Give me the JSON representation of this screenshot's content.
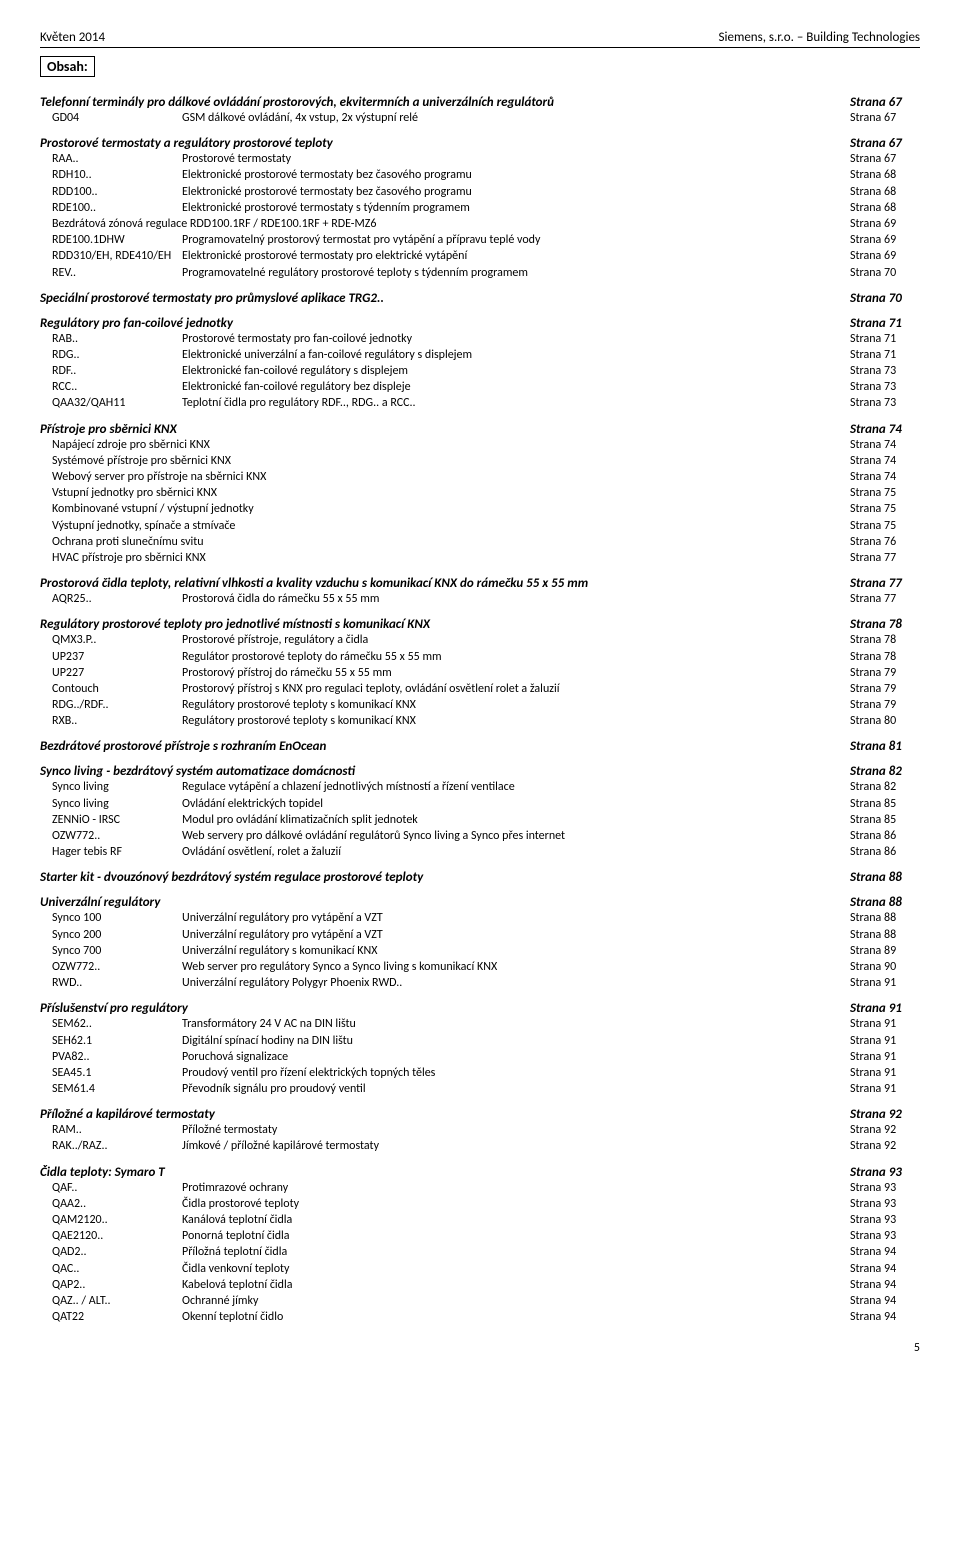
{
  "header_left": "Květen 2014",
  "header_right": "Siemens, s.r.o. – Building Technologies",
  "obsah_label": "Obsah:",
  "sections": [
    {
      "title": "Telefonní terminály pro dálkové ovládání prostorových, ekvitermních a univerzálních regulátorů",
      "page": "Strana 67",
      "rows": [
        {
          "code": "GD04",
          "desc": "GSM dálkové ovládání, 4x vstup, 2x výstupní relé",
          "page": "Strana 67"
        }
      ]
    },
    {
      "title": "Prostorové termostaty a regulátory prostorové teploty",
      "page": "Strana 67",
      "rows": [
        {
          "code": "RAA..",
          "desc": "Prostorové termostaty",
          "page": "Strana 67"
        },
        {
          "code": "RDH10..",
          "desc": "Elektronické prostorové termostaty bez časového programu",
          "page": "Strana 68"
        },
        {
          "code": "RDD100..",
          "desc": "Elektronické prostorové termostaty bez časového programu",
          "page": "Strana 68"
        },
        {
          "code": "RDE100..",
          "desc": "Elektronické prostorové termostaty s týdenním programem",
          "page": "Strana 68"
        },
        {
          "code": "",
          "desc": "Bezdrátová zónová regulace RDD100.1RF / RDE100.1RF + RDE-MZ6",
          "page": "Strana 69",
          "nowrap": true
        },
        {
          "code": "RDE100.1DHW",
          "desc": "Programovatelný prostorový termostat pro vytápění a přípravu teplé vody",
          "page": "Strana 69"
        },
        {
          "code": "RDD310/EH, RDE410/EH",
          "desc": "Elektronické prostorové termostaty pro elektrické vytápění",
          "page": "Strana 69"
        },
        {
          "code": "REV..",
          "desc": "Programovatelné regulátory prostorové teploty s týdenním programem",
          "page": "Strana 70"
        }
      ]
    },
    {
      "title": "Speciální prostorové termostaty pro průmyslové aplikace TRG2..",
      "page": "Strana 70",
      "rows": []
    },
    {
      "title": "Regulátory pro fan-coilové jednotky",
      "page": "Strana 71",
      "rows": [
        {
          "code": "RAB..",
          "desc": "Prostorové termostaty pro fan-coilové jednotky",
          "page": "Strana 71"
        },
        {
          "code": "RDG..",
          "desc": "Elektronické univerzální a fan-coilové regulátory s displejem",
          "page": "Strana 71"
        },
        {
          "code": "RDF..",
          "desc": "Elektronické fan-coilové regulátory s displejem",
          "page": "Strana 73"
        },
        {
          "code": "RCC..",
          "desc": "Elektronické fan-coilové regulátory bez displeje",
          "page": "Strana 73"
        },
        {
          "code": "QAA32/QAH11",
          "desc": "Teplotní čidla pro regulátory RDF.., RDG.. a RCC..",
          "page": "Strana 73"
        }
      ]
    },
    {
      "title": "Přístroje pro sběrnici KNX",
      "page": "Strana 74",
      "subrows": [
        {
          "desc": "Napájecí zdroje pro sběrnici KNX",
          "page": "Strana 74"
        },
        {
          "desc": "Systémové přístroje pro sběrnici KNX",
          "page": "Strana 74"
        },
        {
          "desc": "Webový server pro přístroje na sběrnici KNX",
          "page": "Strana 74"
        },
        {
          "desc": "Vstupní jednotky pro sběrnici KNX",
          "page": "Strana 75"
        },
        {
          "desc": "Kombinované vstupní / výstupní jednotky",
          "page": "Strana 75"
        },
        {
          "desc": "Výstupní jednotky, spínače a stmívače",
          "page": "Strana 75"
        },
        {
          "desc": "Ochrana proti slunečnímu svitu",
          "page": "Strana 76"
        },
        {
          "desc": "HVAC přístroje pro sběrnici KNX",
          "page": "Strana 77"
        }
      ]
    },
    {
      "title": "Prostorová čidla teploty, relativní vlhkosti a kvality vzduchu s komunikací KNX do rámečku 55 x 55 mm",
      "page": "Strana 77",
      "rows": [
        {
          "code": "AQR25..",
          "desc": "Prostorová čidla do rámečku 55 x 55 mm",
          "page": "Strana 77"
        }
      ]
    },
    {
      "title": "Regulátory prostorové teploty pro jednotlivé místnosti s komunikací KNX",
      "page": "Strana 78",
      "rows": [
        {
          "code": "QMX3.P..",
          "desc": "Prostorové přístroje, regulátory a čidla",
          "page": "Strana 78"
        },
        {
          "code": "UP237",
          "desc": "Regulátor prostorové teploty do rámečku 55 x 55 mm",
          "page": "Strana 78"
        },
        {
          "code": "UP227",
          "desc": "Prostorový přístroj do rámečku 55 x 55 mm",
          "page": "Strana 79"
        },
        {
          "code": "Contouch",
          "desc": "Prostorový přístroj s KNX pro regulaci teploty, ovládání osvětlení rolet a žaluzií",
          "page": "Strana 79"
        },
        {
          "code": "RDG../RDF..",
          "desc": "Regulátory prostorové teploty s komunikací KNX",
          "page": "Strana 79"
        },
        {
          "code": "RXB..",
          "desc": "Regulátory prostorové teploty s komunikací KNX",
          "page": "Strana 80"
        }
      ]
    },
    {
      "title": "Bezdrátové prostorové přístroje s rozhraním EnOcean",
      "page": "Strana 81",
      "rows": []
    },
    {
      "title": "Synco living - bezdrátový systém automatizace domácnosti",
      "page": "Strana 82",
      "rows": [
        {
          "code": "Synco living",
          "desc": "Regulace vytápění a chlazení  jednotlivých místností a řízení ventilace",
          "page": "Strana 82"
        },
        {
          "code": "Synco living",
          "desc": "Ovládání elektrických topidel",
          "page": "Strana 85"
        },
        {
          "code": "ZENNiO - IRSC",
          "desc": "Modul pro ovládání klimatizačních split jednotek",
          "page": "Strana 85"
        },
        {
          "code": "OZW772..",
          "desc": "Web servery pro dálkové ovládání regulátorů Synco living a Synco přes internet",
          "page": "Strana 86"
        },
        {
          "code": "Hager tebis RF",
          "desc": "Ovládání osvětlení, rolet a žaluzií",
          "page": "Strana 86"
        }
      ]
    },
    {
      "title": "Starter kit - dvouzónový bezdrátový systém regulace prostorové teploty",
      "page": "Strana 88",
      "rows": []
    },
    {
      "title": "Univerzální regulátory",
      "page": "Strana 88",
      "rows": [
        {
          "code": "Synco 100",
          "desc": "Univerzální regulátory pro vytápění a VZT",
          "page": "Strana 88"
        },
        {
          "code": "Synco 200",
          "desc": "Univerzální regulátory pro vytápění a VZT",
          "page": "Strana 88"
        },
        {
          "code": "Synco 700",
          "desc": "Univerzální regulátory s komunikací KNX",
          "page": "Strana 89"
        },
        {
          "code": "OZW772..",
          "desc": "Web server pro regulátory Synco a Synco living s komunikací KNX",
          "page": "Strana 90"
        },
        {
          "code": "RWD..",
          "desc": "Univerzální regulátory Polygyr Phoenix RWD..",
          "page": "Strana 91"
        }
      ]
    },
    {
      "title": "Příslušenství pro regulátory",
      "page": "Strana 91",
      "rows": [
        {
          "code": "SEM62..",
          "desc": "Transformátory 24 V AC na DIN lištu",
          "page": "Strana 91"
        },
        {
          "code": "SEH62.1",
          "desc": "Digitální spínací hodiny na DIN lištu",
          "page": "Strana 91"
        },
        {
          "code": "PVA82..",
          "desc": "Poruchová signalizace",
          "page": "Strana 91"
        },
        {
          "code": "SEA45.1",
          "desc": "Proudový ventil pro řízení elektrických topných těles",
          "page": "Strana 91"
        },
        {
          "code": "SEM61.4",
          "desc": "Převodník signálu pro proudový ventil",
          "page": "Strana 91"
        }
      ]
    },
    {
      "title": "Příložné a kapilárové termostaty",
      "page": "Strana 92",
      "rows": [
        {
          "code": "RAM..",
          "desc": "Příložné termostaty",
          "page": "Strana 92"
        },
        {
          "code": "RAK../RAZ..",
          "desc": "Jímkové  / příložné kapilárové termostaty",
          "page": "Strana 92"
        }
      ]
    },
    {
      "title": "Čidla teploty: Symaro T",
      "page": "Strana 93",
      "rows": [
        {
          "code": "QAF..",
          "desc": "Protimrazové ochrany",
          "page": "Strana 93"
        },
        {
          "code": "QAA2..",
          "desc": "Čidla prostorové teploty",
          "page": "Strana 93"
        },
        {
          "code": "QAM2120..",
          "desc": "Kanálová teplotní čidla",
          "page": "Strana 93"
        },
        {
          "code": "QAE2120..",
          "desc": "Ponorná teplotní čidla",
          "page": "Strana 93"
        },
        {
          "code": "QAD2..",
          "desc": "Příložná teplotní čidla",
          "page": "Strana 94"
        },
        {
          "code": "QAC..",
          "desc": "Čidla venkovní teploty",
          "page": "Strana 94"
        },
        {
          "code": "QAP2..",
          "desc": "Kabelová teplotní čidla",
          "page": "Strana 94"
        },
        {
          "code": "QAZ.. / ALT..",
          "desc": "Ochranné jímky",
          "page": "Strana 94"
        },
        {
          "code": "QAT22",
          "desc": "Okenní teplotní čidlo",
          "page": "Strana 94"
        }
      ]
    }
  ],
  "page_number": "5"
}
